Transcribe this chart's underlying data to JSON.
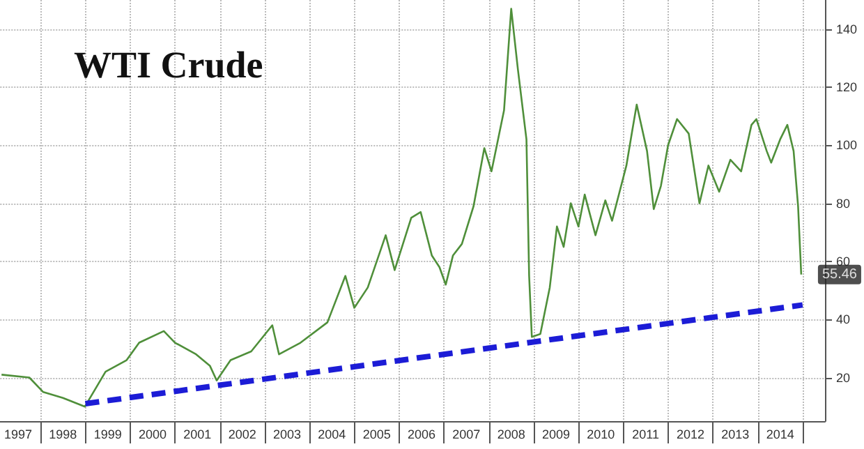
{
  "chart_data": {
    "type": "line",
    "title": "WTI Crude",
    "xlim": [
      1997.1,
      2015.5
    ],
    "ylim": [
      5,
      150
    ],
    "yticks": [
      20,
      40,
      60,
      80,
      100,
      120,
      140
    ],
    "xticks": [
      {
        "value": 1997.5,
        "label": "1997"
      },
      {
        "value": 1998,
        "label": null
      },
      {
        "value": 1998.5,
        "label": "1998"
      },
      {
        "value": 1999,
        "label": null
      },
      {
        "value": 1999.5,
        "label": "1999"
      },
      {
        "value": 2000,
        "label": null
      },
      {
        "value": 2000.5,
        "label": "2000"
      },
      {
        "value": 2001,
        "label": null
      },
      {
        "value": 2001.5,
        "label": "2001"
      },
      {
        "value": 2002,
        "label": null
      },
      {
        "value": 2002.5,
        "label": "2002"
      },
      {
        "value": 2003,
        "label": null
      },
      {
        "value": 2003.5,
        "label": "2003"
      },
      {
        "value": 2004,
        "label": null
      },
      {
        "value": 2004.5,
        "label": "2004"
      },
      {
        "value": 2005,
        "label": null
      },
      {
        "value": 2005.5,
        "label": "2005"
      },
      {
        "value": 2006,
        "label": null
      },
      {
        "value": 2006.5,
        "label": "2006"
      },
      {
        "value": 2007,
        "label": null
      },
      {
        "value": 2007.5,
        "label": "2007"
      },
      {
        "value": 2008,
        "label": null
      },
      {
        "value": 2008.5,
        "label": "2008"
      },
      {
        "value": 2009,
        "label": null
      },
      {
        "value": 2009.5,
        "label": "2009"
      },
      {
        "value": 2010,
        "label": null
      },
      {
        "value": 2010.5,
        "label": "2010"
      },
      {
        "value": 2011,
        "label": null
      },
      {
        "value": 2011.5,
        "label": "2011"
      },
      {
        "value": 2012,
        "label": null
      },
      {
        "value": 2012.5,
        "label": "2012"
      },
      {
        "value": 2013,
        "label": null
      },
      {
        "value": 2013.5,
        "label": "2013"
      },
      {
        "value": 2014,
        "label": null
      },
      {
        "value": 2014.5,
        "label": "2014"
      },
      {
        "value": 2015,
        "label": null
      }
    ],
    "grid": true,
    "marker": "none",
    "series": [
      {
        "color": "#4f8f3a",
        "line_style": "solid",
        "x": [
          1997.13,
          1997.75,
          1998.06,
          1998.5,
          1998.99,
          1999.45,
          1999.92,
          2000.2,
          2000.75,
          2001.0,
          2001.47,
          2001.78,
          2001.93,
          2002.24,
          2002.7,
          2003.17,
          2003.32,
          2003.8,
          2004.4,
          2004.8,
          2005.0,
          2005.3,
          2005.7,
          2005.9,
          2006.27,
          2006.48,
          2006.73,
          2006.9,
          2007.04,
          2007.2,
          2007.4,
          2007.66,
          2007.9,
          2008.06,
          2008.34,
          2008.5,
          2008.65,
          2008.84,
          2008.9,
          2008.96,
          2009.15,
          2009.36,
          2009.52,
          2009.67,
          2009.83,
          2010.0,
          2010.14,
          2010.38,
          2010.6,
          2010.75,
          2011.07,
          2011.2,
          2011.3,
          2011.53,
          2011.68,
          2011.84,
          2012.0,
          2012.2,
          2012.46,
          2012.7,
          2012.9,
          2013.14,
          2013.39,
          2013.63,
          2013.86,
          2013.97,
          2014.2,
          2014.3,
          2014.5,
          2014.66,
          2014.8,
          2014.9,
          2014.97
        ],
        "values": [
          21,
          20,
          15,
          13,
          10,
          22,
          26,
          32,
          36,
          32,
          28,
          24,
          19,
          26,
          29,
          38,
          28,
          32,
          39,
          55,
          44,
          51,
          69,
          57,
          75,
          77,
          62,
          58,
          52,
          62,
          66,
          79,
          99,
          91,
          112,
          147,
          126,
          102,
          55,
          34,
          35,
          51,
          72,
          65,
          80,
          72,
          83,
          69,
          81,
          74,
          93,
          105,
          114,
          98,
          78,
          86,
          100,
          109,
          104,
          80,
          93,
          84,
          95,
          91,
          107,
          109,
          98,
          94,
          102,
          107,
          98,
          79,
          55.46
        ]
      },
      {
        "color": "#1c1cd6",
        "line_style": "dashed",
        "x": [
          1999.0,
          2015.0
        ],
        "values": [
          11,
          45
        ]
      }
    ],
    "annotations": [
      {
        "text": "55.46",
        "x": 2014.97,
        "y": 55.46
      }
    ]
  }
}
